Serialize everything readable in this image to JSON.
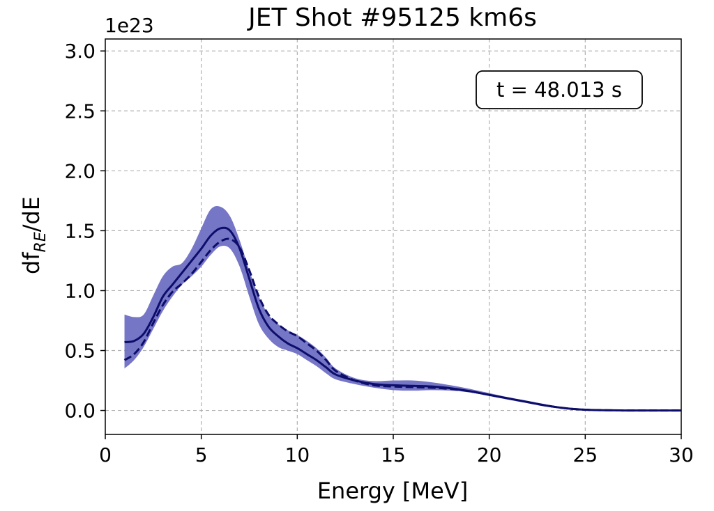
{
  "chart_data": {
    "type": "line",
    "title": "JET Shot #95125 km6s",
    "xlabel": "Energy [MeV]",
    "ylabel_main": "df",
    "ylabel_sub": "RE",
    "ylabel_tail": "/dE",
    "y_offset_text": "1e23",
    "annotation": "t = 48.013 s",
    "xlim": [
      0,
      30
    ],
    "ylim": [
      -0.2,
      3.1
    ],
    "x_ticks": [
      0,
      5,
      10,
      15,
      20,
      25,
      30
    ],
    "x_tick_labels": [
      "0",
      "5",
      "10",
      "15",
      "20",
      "25",
      "30"
    ],
    "y_ticks": [
      0.0,
      0.5,
      1.0,
      1.5,
      2.0,
      2.5,
      3.0
    ],
    "y_tick_labels": [
      "0.0",
      "0.5",
      "1.0",
      "1.5",
      "2.0",
      "2.5",
      "3.0"
    ],
    "grid": true,
    "colors": {
      "line": "#0d0d6b",
      "band": "#6f6fc4"
    },
    "series": [
      {
        "name": "solid",
        "style": "solid",
        "x": [
          1,
          1.5,
          2,
          2.5,
          3,
          3.5,
          4,
          4.5,
          5,
          5.5,
          6,
          6.5,
          7,
          7.5,
          8,
          8.5,
          9,
          9.5,
          10,
          10.5,
          11,
          11.5,
          12,
          13,
          14,
          15,
          16,
          17,
          18,
          19,
          20,
          21,
          22,
          23,
          24,
          25,
          26,
          27,
          28,
          29,
          30
        ],
        "values": [
          0.57,
          0.58,
          0.64,
          0.78,
          0.95,
          1.05,
          1.15,
          1.25,
          1.35,
          1.46,
          1.52,
          1.5,
          1.35,
          1.1,
          0.85,
          0.7,
          0.62,
          0.56,
          0.52,
          0.47,
          0.42,
          0.36,
          0.3,
          0.25,
          0.22,
          0.21,
          0.205,
          0.2,
          0.185,
          0.16,
          0.13,
          0.1,
          0.07,
          0.04,
          0.018,
          0.006,
          0.002,
          0.0,
          0.0,
          0.0,
          0.0
        ]
      },
      {
        "name": "dashed",
        "style": "dashed",
        "x": [
          1,
          1.5,
          2,
          2.5,
          3,
          3.5,
          4,
          4.5,
          5,
          5.5,
          6,
          6.5,
          7,
          7.5,
          8,
          8.5,
          9,
          9.5,
          10,
          10.5,
          11,
          11.5,
          12,
          13,
          14,
          15,
          16,
          17,
          18,
          19,
          20,
          21,
          22,
          23,
          24,
          25,
          26,
          27,
          28,
          29,
          30
        ],
        "values": [
          0.42,
          0.47,
          0.57,
          0.73,
          0.88,
          0.99,
          1.06,
          1.14,
          1.24,
          1.34,
          1.41,
          1.43,
          1.36,
          1.17,
          0.95,
          0.8,
          0.72,
          0.66,
          0.62,
          0.56,
          0.5,
          0.42,
          0.33,
          0.25,
          0.21,
          0.2,
          0.195,
          0.19,
          0.18,
          0.16,
          0.13,
          0.1,
          0.07,
          0.04,
          0.018,
          0.006,
          0.002,
          0.0,
          0.0,
          0.0,
          0.0
        ]
      }
    ],
    "band": {
      "name": "uncertainty",
      "x": [
        1,
        1.5,
        2,
        2.5,
        3,
        3.5,
        4,
        4.5,
        5,
        5.5,
        6,
        6.5,
        7,
        7.5,
        8,
        8.5,
        9,
        9.5,
        10,
        10.5,
        11,
        11.5,
        12,
        13,
        14,
        15,
        16,
        17,
        18,
        19,
        20,
        21,
        22,
        23,
        24,
        25,
        26,
        27,
        28,
        29,
        30
      ],
      "upper": [
        0.8,
        0.78,
        0.8,
        0.96,
        1.12,
        1.2,
        1.23,
        1.35,
        1.52,
        1.68,
        1.7,
        1.62,
        1.42,
        1.17,
        0.95,
        0.8,
        0.72,
        0.67,
        0.63,
        0.58,
        0.52,
        0.44,
        0.35,
        0.27,
        0.245,
        0.25,
        0.25,
        0.235,
        0.21,
        0.18,
        0.145,
        0.11,
        0.08,
        0.05,
        0.025,
        0.01,
        0.004,
        0.001,
        0.0,
        0.0,
        0.0
      ],
      "lower": [
        0.35,
        0.42,
        0.53,
        0.68,
        0.83,
        0.95,
        1.05,
        1.12,
        1.2,
        1.3,
        1.37,
        1.35,
        1.2,
        0.95,
        0.72,
        0.6,
        0.53,
        0.5,
        0.47,
        0.42,
        0.37,
        0.31,
        0.26,
        0.22,
        0.19,
        0.17,
        0.165,
        0.17,
        0.165,
        0.15,
        0.12,
        0.09,
        0.06,
        0.03,
        0.012,
        0.003,
        0.0,
        0.0,
        0.0,
        0.0,
        0.0
      ]
    }
  }
}
